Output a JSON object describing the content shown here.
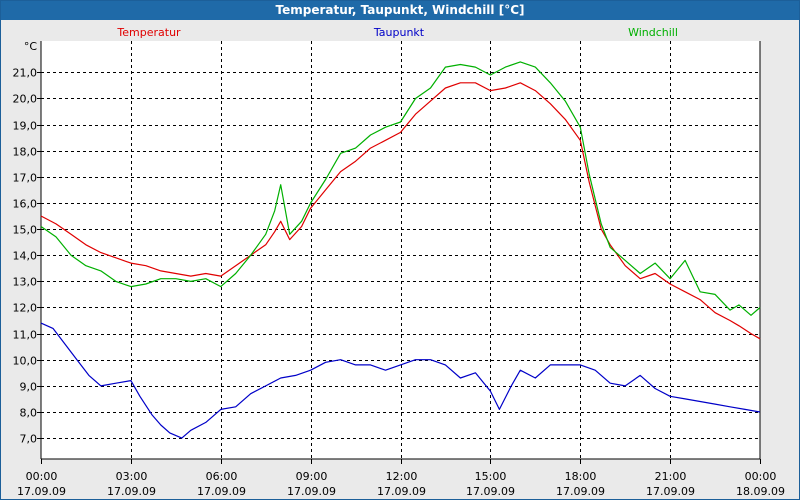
{
  "window": {
    "title": "Temperatur, Taupunkt, Windchill [°C]"
  },
  "colors": {
    "titlebar": "#1f6aa8",
    "temperature": "#e00000",
    "dewpoint": "#0000c8",
    "windchill": "#00b000",
    "grid": "#000000",
    "plot_bg": "#ffffff",
    "frame_bg": "#eaeaea"
  },
  "chart_data": {
    "type": "line",
    "title": "Temperatur, Taupunkt, Windchill [°C]",
    "ylabel": "°C",
    "ylim": [
      6.2,
      22.2
    ],
    "yticks": [
      7,
      8,
      9,
      10,
      11,
      12,
      13,
      14,
      15,
      16,
      17,
      18,
      19,
      20,
      21
    ],
    "ytick_labels": [
      "7,0",
      "8,0",
      "9,0",
      "10,0",
      "11,0",
      "12,0",
      "13,0",
      "14,0",
      "15,0",
      "16,0",
      "17,0",
      "18,0",
      "19,0",
      "20,0",
      "21,0"
    ],
    "xlim": [
      0,
      24
    ],
    "xticks": [
      0,
      3,
      6,
      9,
      12,
      15,
      18,
      21,
      24
    ],
    "xtick_times": [
      "00:00",
      "03:00",
      "06:00",
      "09:00",
      "12:00",
      "15:00",
      "18:00",
      "21:00",
      "00:00"
    ],
    "xtick_dates": [
      "17.09.09",
      "17.09.09",
      "17.09.09",
      "17.09.09",
      "17.09.09",
      "17.09.09",
      "17.09.09",
      "17.09.09",
      "18.09.09"
    ],
    "grid": true,
    "legend": [
      "Temperatur",
      "Taupunkt",
      "Windchill"
    ],
    "series": [
      {
        "name": "Temperatur",
        "color": "#e00000",
        "x": [
          0,
          0.5,
          1,
          1.5,
          2,
          2.5,
          3,
          3.5,
          4,
          4.5,
          5,
          5.5,
          6,
          6.5,
          7,
          7.5,
          7.8,
          8,
          8.3,
          8.7,
          9,
          9.5,
          10,
          10.5,
          11,
          11.5,
          12,
          12.5,
          13,
          13.5,
          14,
          14.5,
          15,
          15.5,
          16,
          16.5,
          17,
          17.5,
          18,
          18.3,
          18.7,
          19,
          19.5,
          20,
          20.5,
          21,
          21.5,
          22,
          22.5,
          23,
          23.3,
          23.7,
          24
        ],
        "values": [
          15.5,
          15.2,
          14.8,
          14.4,
          14.1,
          13.9,
          13.7,
          13.6,
          13.4,
          13.3,
          13.2,
          13.3,
          13.2,
          13.6,
          14.0,
          14.4,
          14.9,
          15.3,
          14.6,
          15.1,
          15.8,
          16.5,
          17.2,
          17.6,
          18.1,
          18.4,
          18.7,
          19.4,
          19.9,
          20.4,
          20.6,
          20.6,
          20.3,
          20.4,
          20.6,
          20.3,
          19.8,
          19.2,
          18.4,
          16.8,
          15.0,
          14.4,
          13.6,
          13.1,
          13.3,
          12.9,
          12.6,
          12.3,
          11.8,
          11.5,
          11.3,
          11.0,
          10.8
        ]
      },
      {
        "name": "Taupunkt",
        "color": "#0000c8",
        "x": [
          0,
          0.4,
          0.8,
          1.2,
          1.6,
          2,
          2.5,
          3,
          3.3,
          3.7,
          4,
          4.3,
          4.7,
          5,
          5.5,
          6,
          6.5,
          7,
          7.5,
          8,
          8.5,
          9,
          9.5,
          10,
          10.5,
          11,
          11.5,
          12,
          12.5,
          13,
          13.5,
          14,
          14.5,
          15,
          15.3,
          15.7,
          16,
          16.5,
          17,
          17.5,
          18,
          18.5,
          19,
          19.5,
          20,
          20.5,
          21,
          21.5,
          22,
          22.5,
          23,
          23.5,
          24
        ],
        "values": [
          11.4,
          11.2,
          10.6,
          10.0,
          9.4,
          9.0,
          9.1,
          9.2,
          8.6,
          7.9,
          7.5,
          7.2,
          7.0,
          7.3,
          7.6,
          8.1,
          8.2,
          8.7,
          9.0,
          9.3,
          9.4,
          9.6,
          9.9,
          10.0,
          9.8,
          9.8,
          9.6,
          9.8,
          10.0,
          10.0,
          9.8,
          9.3,
          9.5,
          8.8,
          8.1,
          9.0,
          9.6,
          9.3,
          9.8,
          9.8,
          9.8,
          9.6,
          9.1,
          9.0,
          9.4,
          8.9,
          8.6,
          8.5,
          8.4,
          8.3,
          8.2,
          8.1,
          8.0
        ]
      },
      {
        "name": "Windchill",
        "color": "#00b000",
        "x": [
          0,
          0.5,
          1,
          1.5,
          2,
          2.5,
          3,
          3.5,
          4,
          4.5,
          5,
          5.5,
          6,
          6.5,
          7,
          7.5,
          7.8,
          8,
          8.3,
          8.7,
          9,
          9.5,
          10,
          10.5,
          11,
          11.5,
          12,
          12.5,
          13,
          13.5,
          14,
          14.5,
          15,
          15.5,
          16,
          16.5,
          17,
          17.5,
          18,
          18.3,
          18.7,
          19,
          19.5,
          20,
          20.5,
          21,
          21.5,
          22,
          22.5,
          23,
          23.3,
          23.7,
          24
        ],
        "values": [
          15.1,
          14.7,
          14.0,
          13.6,
          13.4,
          13.0,
          12.8,
          12.9,
          13.1,
          13.1,
          13.0,
          13.1,
          12.8,
          13.3,
          14.0,
          14.8,
          15.7,
          16.7,
          14.8,
          15.3,
          16.0,
          16.9,
          17.9,
          18.1,
          18.6,
          18.9,
          19.1,
          20.0,
          20.4,
          21.2,
          21.3,
          21.2,
          20.9,
          21.2,
          21.4,
          21.2,
          20.6,
          19.9,
          18.9,
          17.1,
          15.2,
          14.3,
          13.8,
          13.3,
          13.7,
          13.1,
          13.8,
          12.6,
          12.5,
          11.9,
          12.1,
          11.7,
          12.0
        ]
      }
    ]
  }
}
